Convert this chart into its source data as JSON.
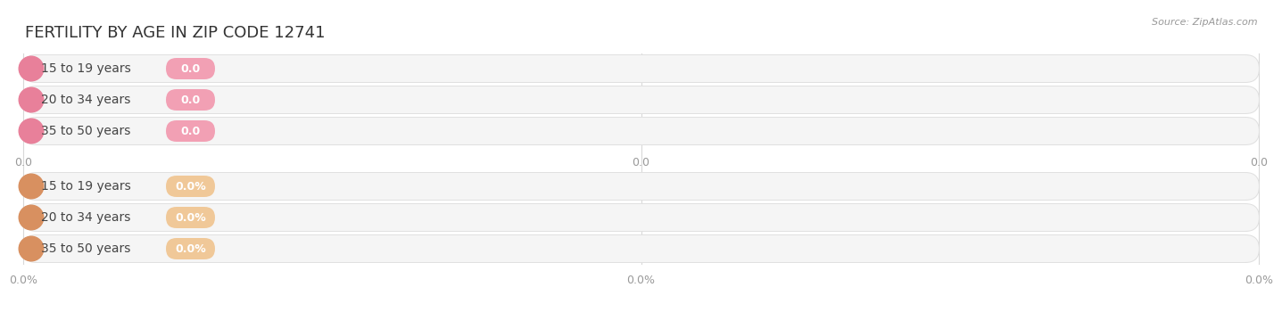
{
  "title": "FERTILITY BY AGE IN ZIP CODE 12741",
  "source": "Source: ZipAtlas.com",
  "categories": [
    "15 to 19 years",
    "20 to 34 years",
    "35 to 50 years"
  ],
  "top_bar_color": "#f2a0b4",
  "top_bar_bg": "#f5f5f5",
  "top_circle_color": "#e8809a",
  "top_badge_color": "#f2a0b4",
  "bottom_bar_color": "#f0c898",
  "bottom_bar_bg": "#f5f5f5",
  "bottom_circle_color": "#d89060",
  "bottom_badge_color": "#f0c898",
  "top_value_labels": [
    "0.0",
    "0.0",
    "0.0"
  ],
  "bottom_value_labels": [
    "0.0%",
    "0.0%",
    "0.0%"
  ],
  "top_xtick_labels": [
    "0.0",
    "0.0",
    "0.0"
  ],
  "bottom_xtick_labels": [
    "0.0%",
    "0.0%",
    "0.0%"
  ],
  "background_color": "#ffffff",
  "title_fontsize": 13,
  "label_fontsize": 10,
  "value_fontsize": 9,
  "source_fontsize": 8,
  "fig_width": 14.06,
  "fig_height": 3.3
}
